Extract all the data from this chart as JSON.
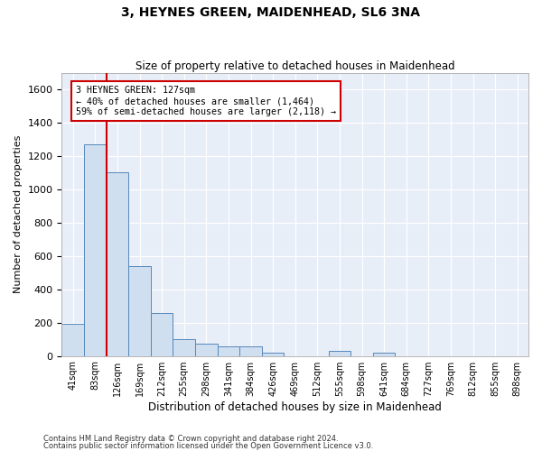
{
  "title": "3, HEYNES GREEN, MAIDENHEAD, SL6 3NA",
  "subtitle": "Size of property relative to detached houses in Maidenhead",
  "xlabel": "Distribution of detached houses by size in Maidenhead",
  "ylabel": "Number of detached properties",
  "bar_color": "#d0dff0",
  "bar_edge_color": "#5588bb",
  "bg_color": "#e8eef8",
  "grid_color": "#ffffff",
  "property_line_color": "#cc0000",
  "ylim": [
    0,
    1700
  ],
  "yticks": [
    0,
    200,
    400,
    600,
    800,
    1000,
    1200,
    1400,
    1600
  ],
  "bins": [
    "41sqm",
    "83sqm",
    "126sqm",
    "169sqm",
    "212sqm",
    "255sqm",
    "298sqm",
    "341sqm",
    "384sqm",
    "426sqm",
    "469sqm",
    "512sqm",
    "555sqm",
    "598sqm",
    "641sqm",
    "684sqm",
    "727sqm",
    "769sqm",
    "812sqm",
    "855sqm",
    "898sqm"
  ],
  "values": [
    195,
    1270,
    1100,
    540,
    255,
    100,
    75,
    60,
    55,
    20,
    0,
    0,
    30,
    0,
    20,
    0,
    0,
    0,
    0,
    0,
    0
  ],
  "property_bin_index": 1,
  "annotation_text_line1": "3 HEYNES GREEN: 127sqm",
  "annotation_text_line2": "← 40% of detached houses are smaller (1,464)",
  "annotation_text_line3": "59% of semi-detached houses are larger (2,118) →",
  "footnote1": "Contains HM Land Registry data © Crown copyright and database right 2024.",
  "footnote2": "Contains public sector information licensed under the Open Government Licence v3.0."
}
